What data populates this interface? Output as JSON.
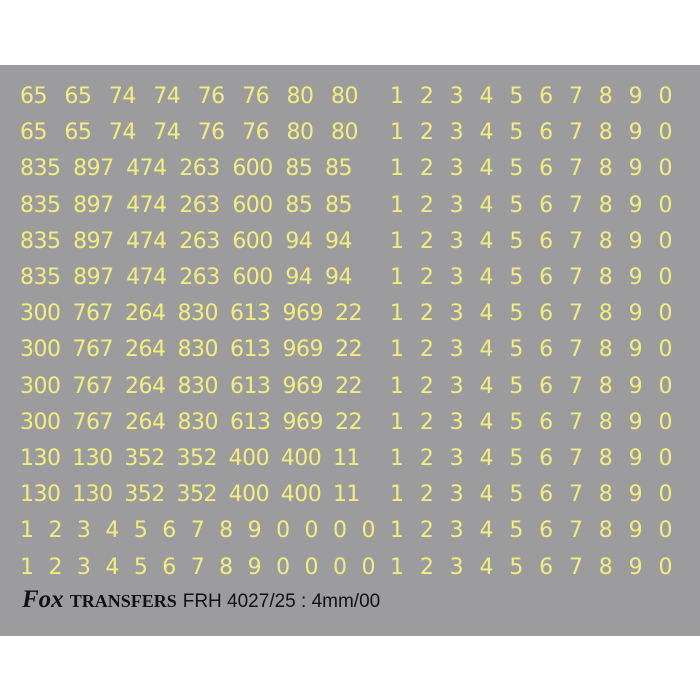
{
  "sheet": {
    "rows": [
      {
        "left": [
          "65",
          "65",
          "74",
          "74",
          "76",
          "76",
          "80",
          "80"
        ],
        "right": [
          "1",
          "2",
          "3",
          "4",
          "5",
          "6",
          "7",
          "8",
          "9",
          "0"
        ]
      },
      {
        "left": [
          "65",
          "65",
          "74",
          "74",
          "76",
          "76",
          "80",
          "80"
        ],
        "right": [
          "1",
          "2",
          "3",
          "4",
          "5",
          "6",
          "7",
          "8",
          "9",
          "0"
        ]
      },
      {
        "left": [
          "835",
          "897",
          "474",
          "263",
          "600",
          "85",
          "85"
        ],
        "right": [
          "1",
          "2",
          "3",
          "4",
          "5",
          "6",
          "7",
          "8",
          "9",
          "0"
        ]
      },
      {
        "left": [
          "835",
          "897",
          "474",
          "263",
          "600",
          "85",
          "85"
        ],
        "right": [
          "1",
          "2",
          "3",
          "4",
          "5",
          "6",
          "7",
          "8",
          "9",
          "0"
        ]
      },
      {
        "left": [
          "835",
          "897",
          "474",
          "263",
          "600",
          "94",
          "94"
        ],
        "right": [
          "1",
          "2",
          "3",
          "4",
          "5",
          "6",
          "7",
          "8",
          "9",
          "0"
        ]
      },
      {
        "left": [
          "835",
          "897",
          "474",
          "263",
          "600",
          "94",
          "94"
        ],
        "right": [
          "1",
          "2",
          "3",
          "4",
          "5",
          "6",
          "7",
          "8",
          "9",
          "0"
        ]
      },
      {
        "left": [
          "300",
          "767",
          "264",
          "830",
          "613",
          "969",
          "22"
        ],
        "right": [
          "1",
          "2",
          "3",
          "4",
          "5",
          "6",
          "7",
          "8",
          "9",
          "0"
        ]
      },
      {
        "left": [
          "300",
          "767",
          "264",
          "830",
          "613",
          "969",
          "22"
        ],
        "right": [
          "1",
          "2",
          "3",
          "4",
          "5",
          "6",
          "7",
          "8",
          "9",
          "0"
        ]
      },
      {
        "left": [
          "300",
          "767",
          "264",
          "830",
          "613",
          "969",
          "22"
        ],
        "right": [
          "1",
          "2",
          "3",
          "4",
          "5",
          "6",
          "7",
          "8",
          "9",
          "0"
        ]
      },
      {
        "left": [
          "300",
          "767",
          "264",
          "830",
          "613",
          "969",
          "22"
        ],
        "right": [
          "1",
          "2",
          "3",
          "4",
          "5",
          "6",
          "7",
          "8",
          "9",
          "0"
        ]
      },
      {
        "left": [
          "130",
          "130",
          "352",
          "352",
          "400",
          "400",
          "11"
        ],
        "right": [
          "1",
          "2",
          "3",
          "4",
          "5",
          "6",
          "7",
          "8",
          "9",
          "0"
        ]
      },
      {
        "left": [
          "130",
          "130",
          "352",
          "352",
          "400",
          "400",
          "11"
        ],
        "right": [
          "1",
          "2",
          "3",
          "4",
          "5",
          "6",
          "7",
          "8",
          "9",
          "0"
        ]
      },
      {
        "left": [
          "1",
          "2",
          "3",
          "4",
          "5",
          "6",
          "7",
          "8",
          "9",
          "0",
          "0",
          "0",
          "0"
        ],
        "right": [
          "1",
          "2",
          "3",
          "4",
          "5",
          "6",
          "7",
          "8",
          "9",
          "0"
        ]
      },
      {
        "left": [
          "1",
          "2",
          "3",
          "4",
          "5",
          "6",
          "7",
          "8",
          "9",
          "0",
          "0",
          "0",
          "0"
        ],
        "right": [
          "1",
          "2",
          "3",
          "4",
          "5",
          "6",
          "7",
          "8",
          "9",
          "0"
        ]
      }
    ]
  },
  "footer": {
    "brand": "Fox",
    "brand_suffix": "TRANSFERS",
    "product_code": "FRH 4027/25 : 4mm/00"
  },
  "watermark": "Fox TRANSFERS",
  "colors": {
    "sheet": "#9c9c9e",
    "digits": "#f2ee7e"
  }
}
